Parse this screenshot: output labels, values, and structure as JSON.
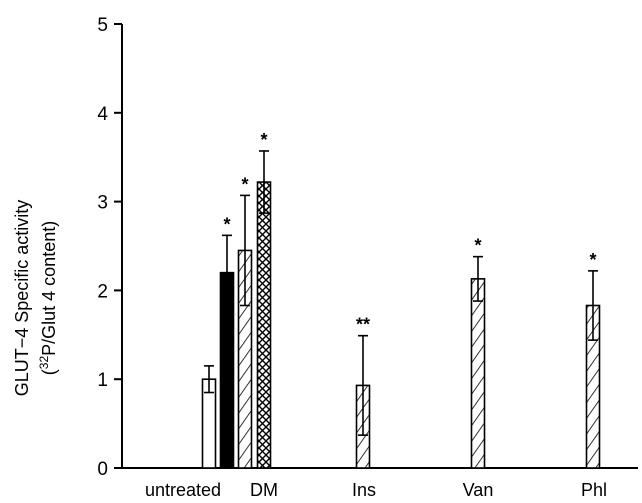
{
  "chart_data": {
    "type": "bar",
    "ylabel_line1": "GLUT−4 Specific activity",
    "ylabel_line2_pre": "(",
    "ylabel_line2_sup": "32",
    "ylabel_line2_post": "P/Glut 4 content)",
    "ylim": [
      0,
      5
    ],
    "yticks": [
      "0",
      "1",
      "2",
      "3",
      "4",
      "5"
    ],
    "categories": [
      "untreated",
      "DM",
      "Ins",
      "Van",
      "Phl"
    ],
    "bars": [
      {
        "value": 1.0,
        "error": 0.15,
        "fill": "white",
        "significance": ""
      },
      {
        "value": 2.2,
        "error": 0.42,
        "fill": "black",
        "significance": "*"
      },
      {
        "value": 2.45,
        "error": 0.62,
        "fill": "hatch",
        "significance": "*"
      },
      {
        "value": 3.22,
        "error": 0.35,
        "fill": "crosshatch",
        "significance": "*"
      },
      {
        "value": 0.93,
        "error": 0.56,
        "fill": "hatch",
        "significance": "**"
      },
      {
        "value": 2.13,
        "error": 0.25,
        "fill": "hatch",
        "significance": "*"
      },
      {
        "value": 1.83,
        "error": 0.39,
        "fill": "hatch",
        "significance": "*"
      }
    ]
  }
}
